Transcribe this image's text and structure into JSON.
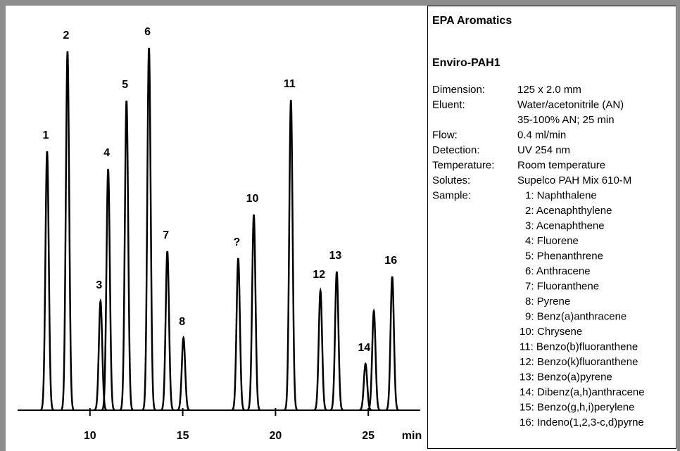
{
  "chart_data": {
    "type": "line",
    "xlabel": "min",
    "color": "#000000",
    "xlim": [
      6.1,
      27.8
    ],
    "xticks": [
      10,
      15,
      20,
      25
    ],
    "ylim": [
      0,
      530
    ],
    "peaks": [
      {
        "label": "1",
        "x": 7.69,
        "height": 368
      },
      {
        "label": "2",
        "x": 8.79,
        "height": 510
      },
      {
        "label": "3",
        "x": 10.57,
        "height": 155
      },
      {
        "label": "4",
        "x": 10.98,
        "height": 343
      },
      {
        "label": "5",
        "x": 11.97,
        "height": 440
      },
      {
        "label": "6",
        "x": 13.18,
        "height": 515
      },
      {
        "label": "7",
        "x": 14.17,
        "height": 226
      },
      {
        "label": "8",
        "x": 15.04,
        "height": 103
      },
      {
        "label": "?",
        "x": 17.99,
        "height": 216
      },
      {
        "label": "10",
        "x": 18.83,
        "height": 278
      },
      {
        "label": "11",
        "x": 20.83,
        "height": 441
      },
      {
        "label": "12",
        "x": 22.42,
        "height": 170
      },
      {
        "label": "13",
        "x": 23.3,
        "height": 197
      },
      {
        "label": "14",
        "x": 24.85,
        "height": 66
      },
      {
        "label": null,
        "x": 25.3,
        "height": 141
      },
      {
        "label": "16",
        "x": 26.29,
        "height": 190
      }
    ]
  },
  "panel": {
    "title": "EPA Aromatics",
    "column": "Enviro-PAH1",
    "specs": [
      {
        "label": "Dimension:",
        "value": [
          "125 x 2.0 mm"
        ]
      },
      {
        "label": "Eluent:",
        "value": [
          "Water/acetonitrile (AN)",
          "35-100% AN; 25 min"
        ]
      },
      {
        "label": "Flow:",
        "value": [
          "0.4 ml/min"
        ]
      },
      {
        "label": "Detection:",
        "value": [
          "UV 254 nm"
        ]
      },
      {
        "label": "Temperature:",
        "value": [
          "Room temperature"
        ]
      },
      {
        "label": "Solutes:",
        "value": [
          "Supelco PAH Mix 610-M"
        ]
      }
    ],
    "sample_label": "Sample:",
    "samples": [
      "1: Naphthalene",
      "2: Acenaphthylene",
      "3: Acenaphthene",
      "4: Fluorene",
      "5: Phenanthrene",
      "6: Anthracene",
      "7: Fluoranthene",
      "8: Pyrene",
      "9: Benz(a)anthracene",
      "10: Chrysene",
      "11: Benzo(b)fluoranthene",
      "12: Benzo(k)fluoranthene",
      "13: Benzo(a)pyrene",
      "14: Dibenz(a,h)anthracene",
      "15: Benzo(g,h,i)perylene",
      "16: Indeno(1,2,3-c,d)pyrne"
    ]
  }
}
